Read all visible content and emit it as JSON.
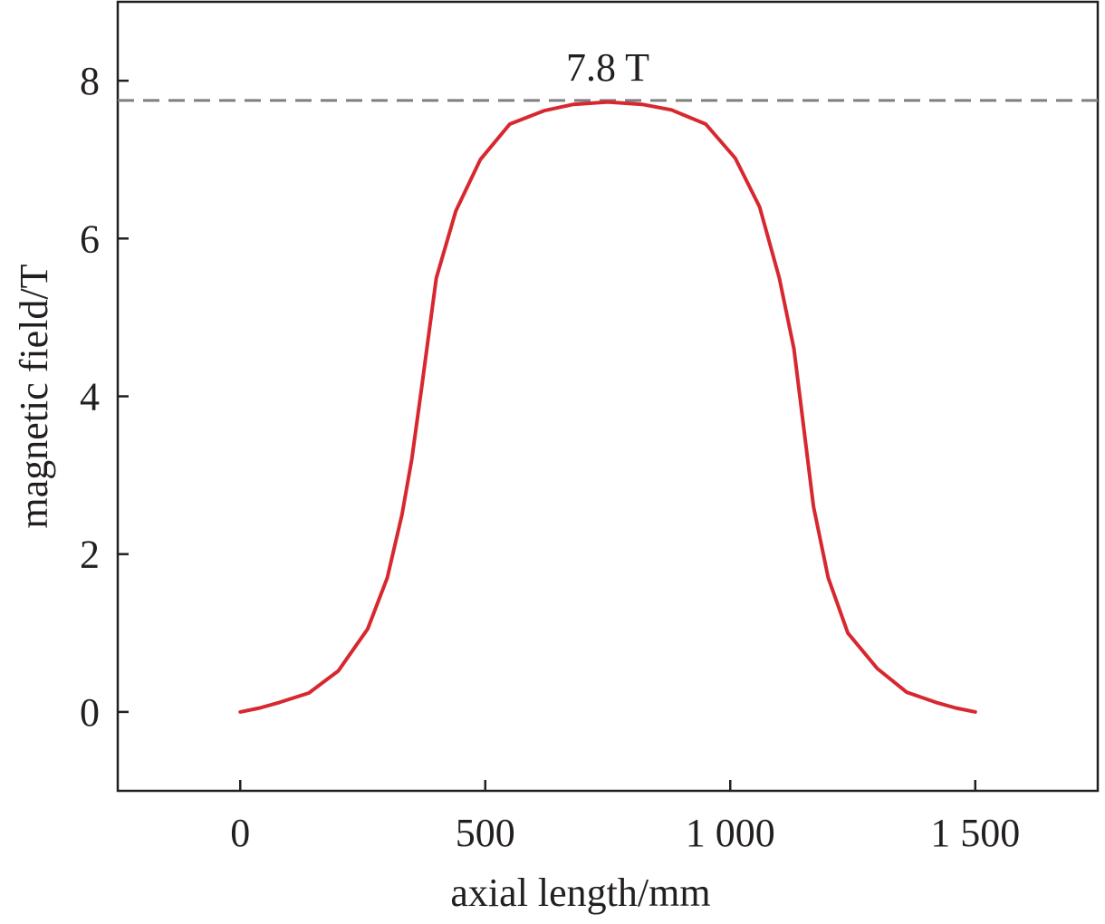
{
  "chart_data": {
    "type": "line",
    "xlabel": "axial length/mm",
    "ylabel": "magnetic field/T",
    "xlim": [
      -250,
      1750
    ],
    "ylim": [
      -1,
      9
    ],
    "xticks": [
      0,
      500,
      1000,
      1500
    ],
    "xtick_labels": [
      "0",
      "500",
      "1 000",
      "1 500"
    ],
    "yticks": [
      0,
      2,
      4,
      6,
      8
    ],
    "ytick_labels": [
      "0",
      "2",
      "4",
      "6",
      "8"
    ],
    "grid": false,
    "series": [
      {
        "color": "#d7282f",
        "x": [
          0,
          40,
          80,
          140,
          200,
          260,
          300,
          330,
          350,
          370,
          400,
          440,
          490,
          550,
          620,
          680,
          750,
          820,
          880,
          950,
          1010,
          1060,
          1100,
          1130,
          1150,
          1170,
          1200,
          1240,
          1300,
          1360,
          1420,
          1460,
          1500
        ],
        "y": [
          0,
          0.05,
          0.12,
          0.24,
          0.52,
          1.05,
          1.7,
          2.5,
          3.2,
          4.1,
          5.5,
          6.35,
          7.0,
          7.45,
          7.62,
          7.7,
          7.73,
          7.7,
          7.63,
          7.45,
          7.02,
          6.4,
          5.5,
          4.6,
          3.6,
          2.6,
          1.7,
          1.0,
          0.55,
          0.25,
          0.12,
          0.05,
          0
        ]
      }
    ],
    "reference_line": {
      "y": 7.75,
      "style": "dashed",
      "color": "#7f7f7f",
      "label": "7.8 T"
    }
  }
}
